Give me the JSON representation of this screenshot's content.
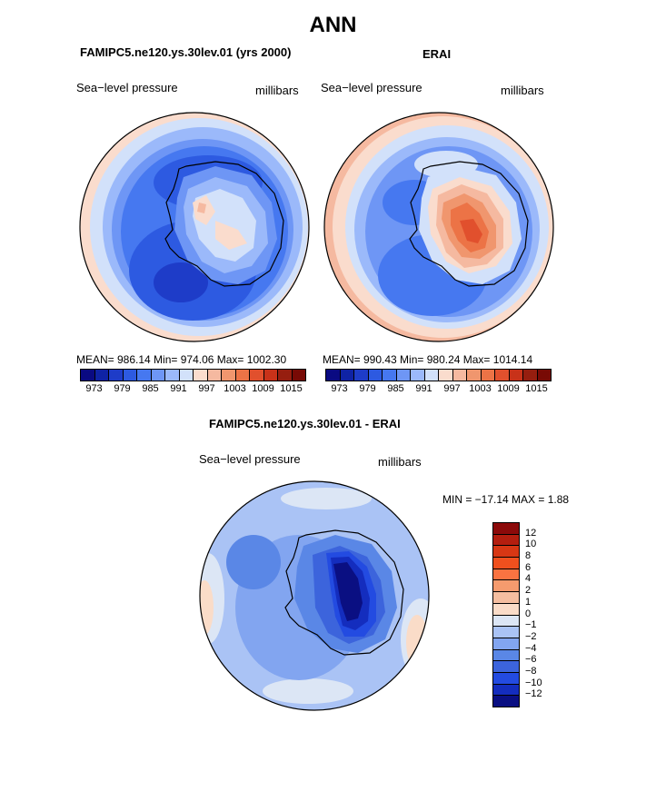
{
  "page_title": "ANN",
  "panels": [
    {
      "id": "model",
      "title": "FAMIPC5.ne120.ys.30lev.01 (yrs 2000)",
      "variable": "Sea−level pressure",
      "units": "millibars",
      "stats_text": "MEAN= 986.14   Min= 974.06   Max= 1002.30"
    },
    {
      "id": "obs",
      "title": "ERAI",
      "variable": "Sea−level pressure",
      "units": "millibars",
      "stats_text": "MEAN= 990.43   Min= 980.24   Max= 1014.14"
    },
    {
      "id": "diff",
      "title": "FAMIPC5.ne120.ys.30lev.01 - ERAI",
      "variable": "Sea−level pressure",
      "units": "millibars",
      "stats_text": "MIN = −17.14  MAX =    1.88"
    }
  ],
  "colorbar_abs": {
    "colors": [
      "#0a0a82",
      "#0f23a5",
      "#1e3cc8",
      "#2d5ae1",
      "#4678f0",
      "#6e96f5",
      "#9bb9fa",
      "#d2e1fa",
      "#fadccd",
      "#f5b9a0",
      "#f0966e",
      "#ec7346",
      "#e1502d",
      "#c83219",
      "#961e0f",
      "#780a05"
    ],
    "tick_labels": [
      "973",
      "979",
      "985",
      "991",
      "997",
      "1003",
      "1009",
      "1015"
    ]
  },
  "colorbar_diff": {
    "colors": [
      "#8c0a0a",
      "#b41e0f",
      "#d73714",
      "#f0501e",
      "#fa7341",
      "#f59b6e",
      "#f5bea0",
      "#fadcc8",
      "#dce6f5",
      "#aac3f5",
      "#82a5f0",
      "#5a87e6",
      "#3c64dc",
      "#234be1",
      "#142dbe",
      "#0a0f82"
    ],
    "tick_labels": [
      "12",
      "10",
      "8",
      "6",
      "4",
      "2",
      "1",
      "0",
      "−1",
      "−2",
      "−4",
      "−6",
      "−8",
      "−10",
      "−12"
    ]
  },
  "chart_data": [
    {
      "type": "heatmap",
      "title": "FAMIPC5.ne120.ys.30lev.01 (yrs 2000)",
      "variable": "Sea−level pressure",
      "units": "millibars",
      "mean": 986.14,
      "min": 974.06,
      "max": 1002.3,
      "projection": "south polar stereographic",
      "levels": [
        973,
        976,
        979,
        982,
        985,
        988,
        991,
        994,
        997,
        1000,
        1003,
        1006,
        1009,
        1012,
        1015
      ]
    },
    {
      "type": "heatmap",
      "title": "ERAI",
      "variable": "Sea−level pressure",
      "units": "millibars",
      "mean": 990.43,
      "min": 980.24,
      "max": 1014.14,
      "projection": "south polar stereographic",
      "levels": [
        973,
        976,
        979,
        982,
        985,
        988,
        991,
        994,
        997,
        1000,
        1003,
        1006,
        1009,
        1012,
        1015
      ]
    },
    {
      "type": "heatmap",
      "title": "FAMIPC5.ne120.ys.30lev.01 - ERAI",
      "variable": "Sea−level pressure",
      "units": "millibars",
      "min": -17.14,
      "max": 1.88,
      "projection": "south polar stereographic",
      "levels": [
        -12,
        -10,
        -8,
        -6,
        -4,
        -2,
        -1,
        0,
        1,
        2,
        4,
        6,
        8,
        10,
        12
      ]
    }
  ]
}
